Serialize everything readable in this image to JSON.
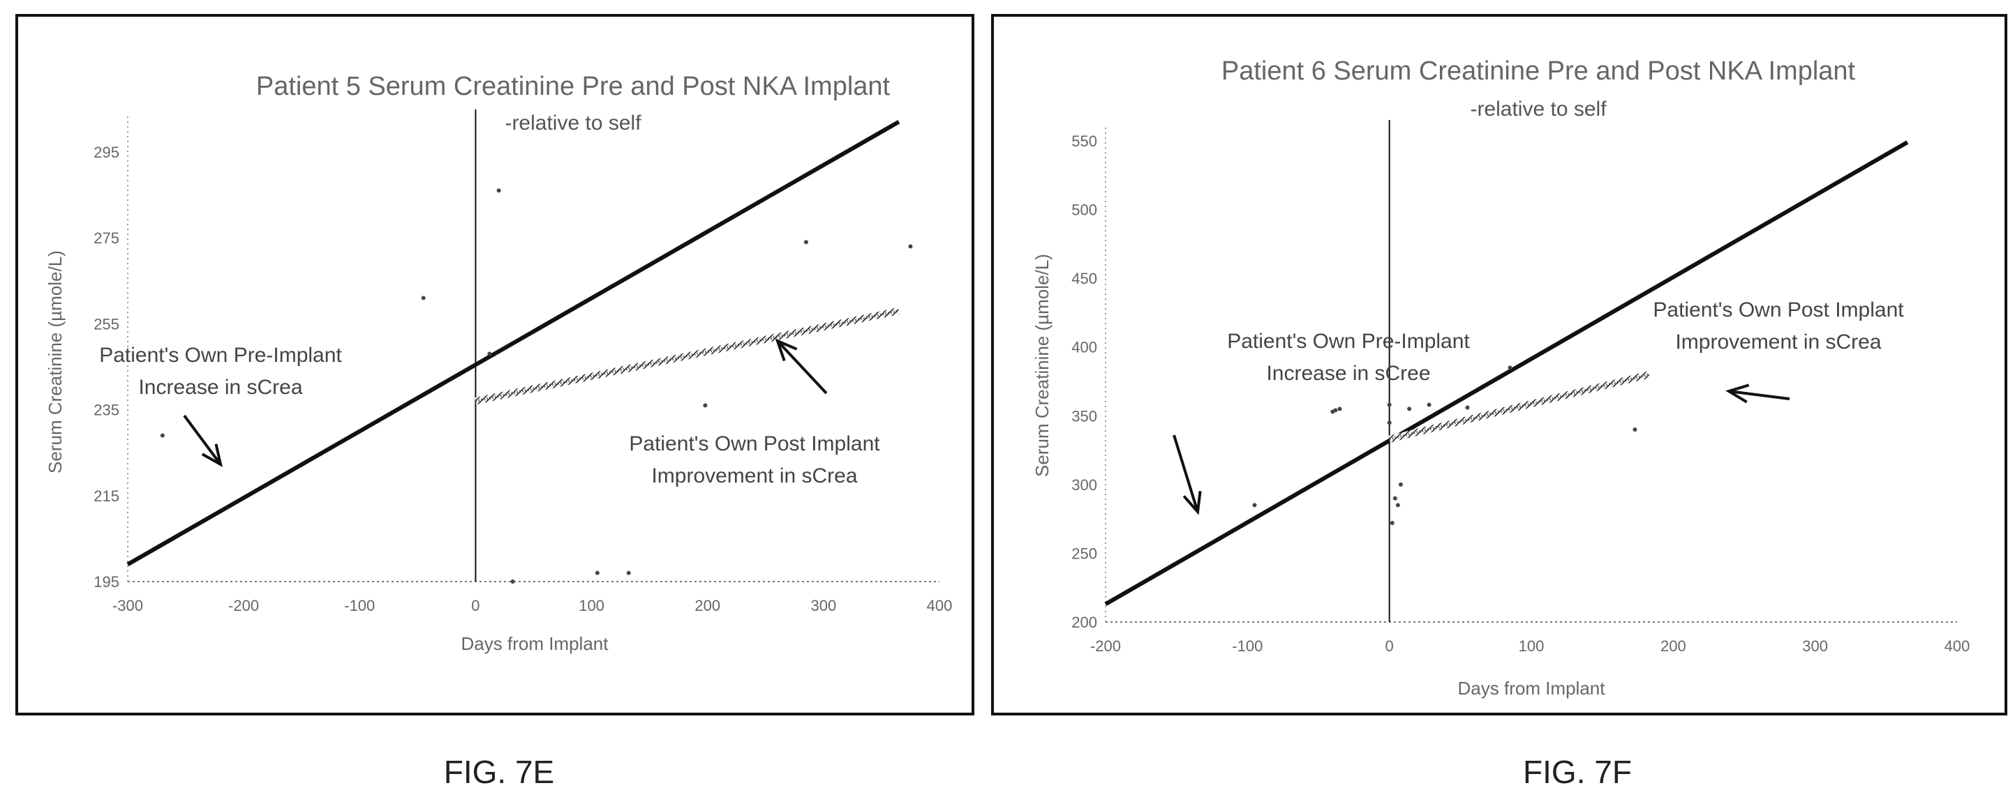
{
  "captions": [
    "FIG. 7E",
    "FIG. 7F"
  ],
  "chart_data": [
    {
      "type": "scatter",
      "title": "Patient 5 Serum Creatinine Pre and Post NKA Implant",
      "subtitle": "-relative to self",
      "xlabel": "Days from Implant",
      "ylabel": "Serum Creatinine (µmole/L)",
      "xlim": [
        -300,
        400
      ],
      "ylim": [
        195,
        300
      ],
      "x_ticks": [
        -300,
        -200,
        -100,
        0,
        100,
        200,
        300,
        400
      ],
      "y_ticks": [
        195,
        215,
        235,
        255,
        275,
        295
      ],
      "grid": false,
      "points": [
        {
          "x": -270,
          "y": 229
        },
        {
          "x": -45,
          "y": 261
        },
        {
          "x": 12,
          "y": 248
        },
        {
          "x": 20,
          "y": 286
        },
        {
          "x": 32,
          "y": 195
        },
        {
          "x": 105,
          "y": 197
        },
        {
          "x": 132,
          "y": 197
        },
        {
          "x": 198,
          "y": 236
        },
        {
          "x": 285,
          "y": 274
        },
        {
          "x": 375,
          "y": 273
        }
      ],
      "trendlines": [
        {
          "name": "Patient's Own Pre-Implant Increase in sCrea",
          "style": "solid",
          "x": [
            -300,
            365
          ],
          "y": [
            199,
            302
          ]
        },
        {
          "name": "Patient's Own Post Implant Improvement in sCrea",
          "style": "hatched",
          "x": [
            0,
            365
          ],
          "y": [
            237,
            258
          ]
        }
      ],
      "annotations": [
        {
          "lines": [
            "Patient's Own Pre-Implant",
            "Increase in sCrea"
          ]
        },
        {
          "lines": [
            "Patient's Own Post Implant",
            "Improvement in sCrea"
          ]
        }
      ]
    },
    {
      "type": "scatter",
      "title": "Patient 6 Serum Creatinine Pre and Post NKA Implant",
      "subtitle": "-relative to self",
      "xlabel": "Days from Implant",
      "ylabel": "Serum Creatinine (µmole/L)",
      "xlim": [
        -200,
        400
      ],
      "ylim": [
        200,
        550
      ],
      "x_ticks": [
        -200,
        -100,
        0,
        100,
        200,
        300,
        400
      ],
      "y_ticks": [
        200,
        250,
        300,
        350,
        400,
        450,
        500,
        550
      ],
      "grid": false,
      "points": [
        {
          "x": -95,
          "y": 285
        },
        {
          "x": -40,
          "y": 353
        },
        {
          "x": -38,
          "y": 354
        },
        {
          "x": -35,
          "y": 355
        },
        {
          "x": 0,
          "y": 345
        },
        {
          "x": 0,
          "y": 358
        },
        {
          "x": 2,
          "y": 272
        },
        {
          "x": 4,
          "y": 290
        },
        {
          "x": 6,
          "y": 285
        },
        {
          "x": 8,
          "y": 300
        },
        {
          "x": 14,
          "y": 355
        },
        {
          "x": 28,
          "y": 358
        },
        {
          "x": 55,
          "y": 356
        },
        {
          "x": 85,
          "y": 385
        },
        {
          "x": 173,
          "y": 340
        }
      ],
      "trendlines": [
        {
          "name": "Patient's Own Pre-Implant Increase in sCree",
          "style": "solid",
          "x": [
            -200,
            365
          ],
          "y": [
            213,
            549
          ]
        },
        {
          "name": "Patient's Own Post Implant Improvement in sCrea",
          "style": "hatched",
          "x": [
            0,
            183
          ],
          "y": [
            333,
            380
          ]
        }
      ],
      "annotations": [
        {
          "lines": [
            "Patient's Own Pre-Implant",
            "Increase in sCree"
          ]
        },
        {
          "lines": [
            "Patient's Own Post Implant",
            "Improvement in sCrea"
          ]
        }
      ]
    }
  ]
}
